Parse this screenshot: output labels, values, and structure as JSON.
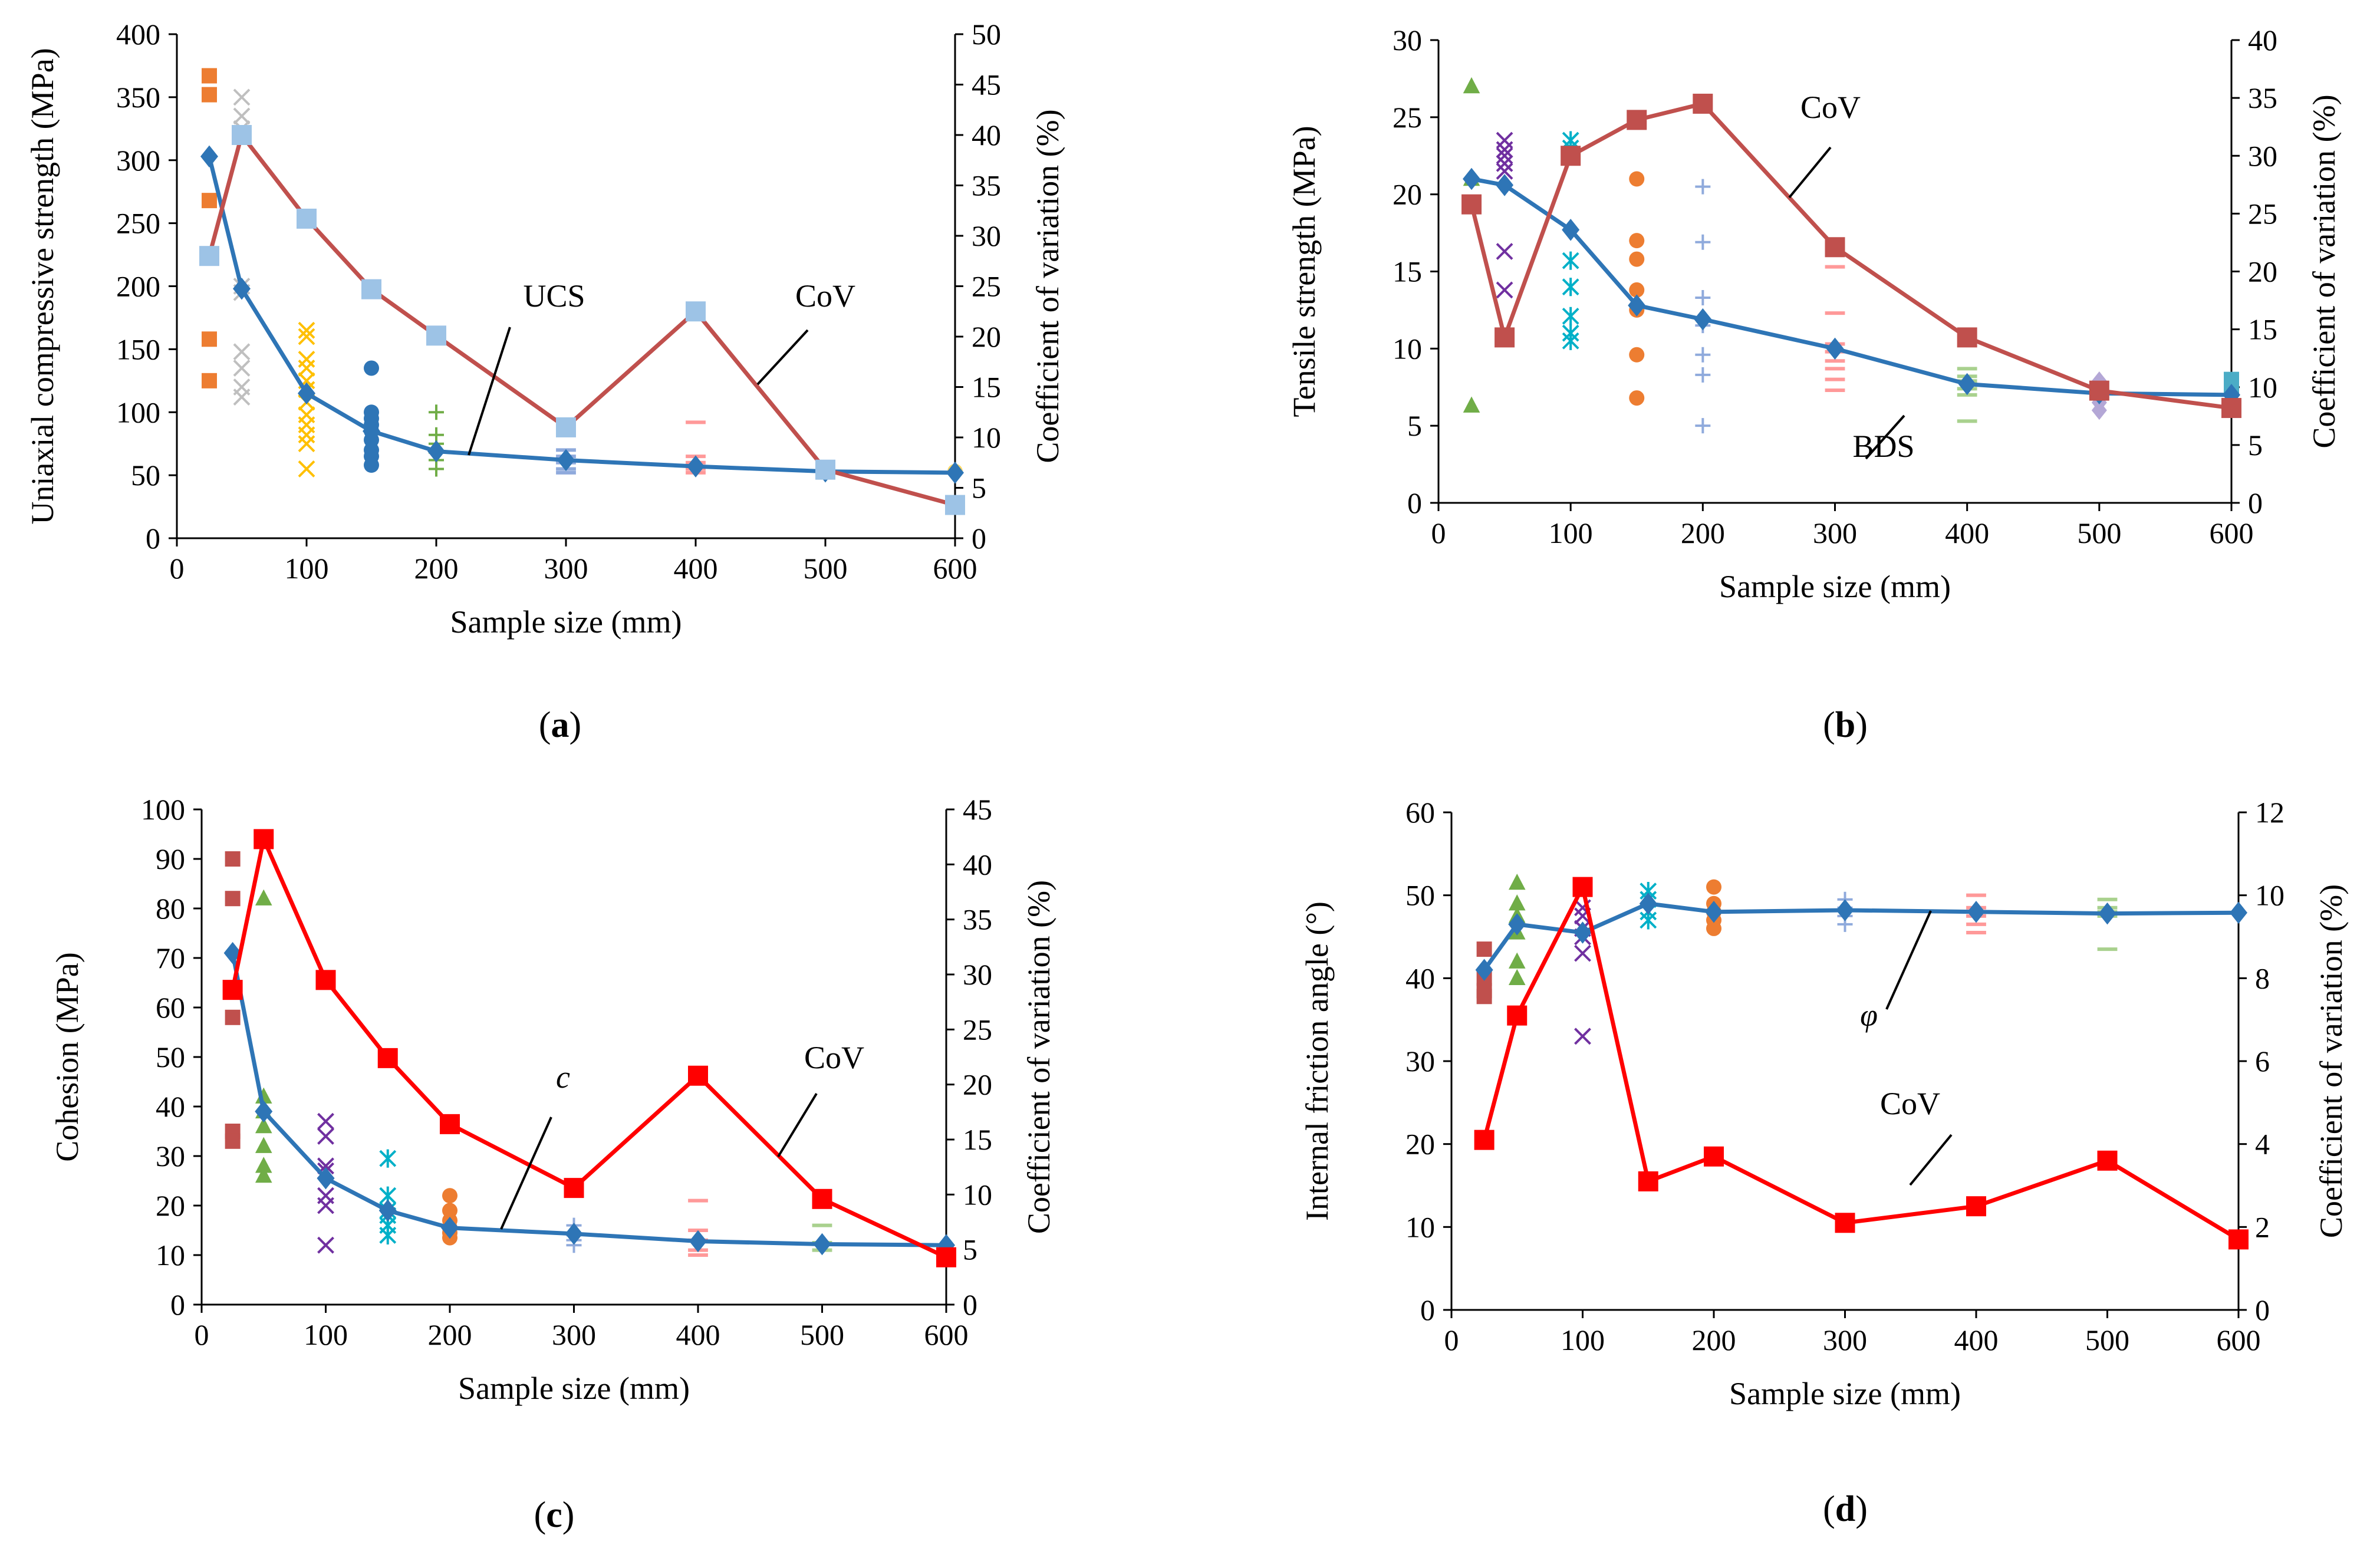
{
  "chart_data": [
    {
      "id": "a",
      "type": "line",
      "panel_label": "(a)",
      "panel_letter": "a",
      "xlabel": "Sample size (mm)",
      "ylabel": "Uniaxial compressive strength (MPa)",
      "y2label": "Coefficient of variation (%)",
      "xlim": [
        0,
        600
      ],
      "ylim": [
        0,
        400
      ],
      "y2lim": [
        0,
        50
      ],
      "xticks": [
        0,
        100,
        200,
        300,
        400,
        500,
        600
      ],
      "yticks": [
        0,
        50,
        100,
        150,
        200,
        250,
        300,
        350,
        400
      ],
      "y2ticks": [
        0,
        5,
        10,
        15,
        20,
        25,
        30,
        35,
        40,
        45,
        50
      ],
      "annotations": [
        "UCS",
        "CoV"
      ],
      "series": [
        {
          "name": "UCS",
          "axis": "left",
          "color": "#2e75b6",
          "marker": "diamond",
          "x": [
            25,
            50,
            100,
            150,
            200,
            300,
            400,
            500,
            600
          ],
          "values": [
            303,
            198,
            115,
            85,
            69,
            62,
            57,
            53,
            52
          ]
        },
        {
          "name": "CoV",
          "axis": "right",
          "color": "#c0504d",
          "marker_color": "#9dc3e6",
          "marker": "square",
          "x": [
            25,
            50,
            100,
            150,
            200,
            300,
            400,
            500,
            600
          ],
          "values": [
            28,
            40,
            31.7,
            24.7,
            20.1,
            11,
            22.5,
            6.8,
            3.3
          ]
        }
      ],
      "scatter": [
        {
          "x": 25,
          "color": "#ed7d31",
          "marker": "square",
          "values": [
            367,
            352,
            268,
            158,
            125
          ]
        },
        {
          "x": 50,
          "color": "#bfbfbf",
          "marker": "x",
          "values": [
            350,
            335,
            325,
            200,
            195,
            148,
            135,
            120,
            112
          ]
        },
        {
          "x": 100,
          "color": "#ffc000",
          "marker": "x",
          "values": [
            165,
            160,
            142,
            135,
            125,
            118,
            108,
            98,
            90,
            82,
            75,
            55
          ]
        },
        {
          "x": 150,
          "color": "#2e75b6",
          "marker": "circle",
          "values": [
            135,
            100,
            95,
            90,
            85,
            78,
            70,
            65,
            58
          ]
        },
        {
          "x": 200,
          "color": "#70ad47",
          "marker": "plus",
          "values": [
            100,
            82,
            75,
            68,
            62,
            55
          ]
        },
        {
          "x": 300,
          "color": "#8faadc",
          "marker": "dash",
          "values": [
            70,
            65,
            60,
            55,
            52
          ]
        },
        {
          "x": 400,
          "color": "#ff9999",
          "marker": "dash",
          "values": [
            92,
            65,
            60,
            55,
            52
          ]
        },
        {
          "x": 500,
          "color": "#a9d18e",
          "marker": "dash",
          "values": [
            57,
            55,
            52
          ]
        },
        {
          "x": 600,
          "color": "#ffd966",
          "marker": "circle",
          "values": [
            53
          ]
        }
      ]
    },
    {
      "id": "b",
      "type": "line",
      "panel_label": "(b)",
      "panel_letter": "b",
      "xlabel": "Sample size (mm)",
      "ylabel": "Tensile strength (MPa)",
      "y2label": "Coefficient of variation (%)",
      "xlim": [
        0,
        600
      ],
      "ylim": [
        0,
        30
      ],
      "y2lim": [
        0,
        40
      ],
      "xticks": [
        0,
        100,
        200,
        300,
        400,
        500,
        600
      ],
      "yticks": [
        0,
        5,
        10,
        15,
        20,
        25,
        30
      ],
      "y2ticks": [
        0,
        5,
        10,
        15,
        20,
        25,
        30,
        35,
        40
      ],
      "annotations": [
        "CoV",
        "BDS"
      ],
      "series": [
        {
          "name": "BDS",
          "axis": "left",
          "color": "#2e75b6",
          "marker": "diamond",
          "x": [
            25,
            50,
            100,
            150,
            200,
            300,
            400,
            500,
            600
          ],
          "values": [
            21,
            20.6,
            17.7,
            12.8,
            11.9,
            10,
            7.7,
            7.1,
            7
          ]
        },
        {
          "name": "CoV",
          "axis": "right",
          "color": "#c0504d",
          "marker": "square",
          "x": [
            25,
            50,
            100,
            150,
            200,
            300,
            400,
            500,
            600
          ],
          "values": [
            25.8,
            14.3,
            30,
            33.1,
            34.5,
            22.1,
            14.3,
            9.7,
            8.2
          ]
        }
      ],
      "scatter": [
        {
          "x": 25,
          "color": "#70ad47",
          "marker": "triangle",
          "values": [
            27,
            21,
            6.3
          ]
        },
        {
          "x": 50,
          "color": "#7030a0",
          "marker": "x",
          "values": [
            23.5,
            22.9,
            22.5,
            22,
            21.5,
            16.3,
            13.8
          ]
        },
        {
          "x": 100,
          "color": "#00b0c8",
          "marker": "asterisk",
          "values": [
            23.5,
            23,
            15.7,
            14,
            12.1,
            11,
            10.5
          ]
        },
        {
          "x": 150,
          "color": "#ed7d31",
          "marker": "circle",
          "values": [
            21,
            17,
            15.8,
            13.8,
            12.5,
            9.6,
            6.8
          ]
        },
        {
          "x": 200,
          "color": "#8faadc",
          "marker": "plus",
          "values": [
            20.5,
            16.9,
            13.3,
            11.5,
            9.6,
            8.3,
            5
          ]
        },
        {
          "x": 300,
          "color": "#ff9999",
          "marker": "dash",
          "values": [
            15.3,
            12.3,
            10.3,
            9.8,
            9.2,
            8.7,
            8,
            7.3
          ]
        },
        {
          "x": 400,
          "color": "#a9d18e",
          "marker": "dash",
          "values": [
            8.7,
            8.2,
            7.9,
            7.4,
            7,
            5.3
          ]
        },
        {
          "x": 500,
          "color": "#b4a7d6",
          "marker": "diamond",
          "values": [
            7.9,
            7.5,
            6.9,
            6.5,
            6
          ]
        },
        {
          "x": 600,
          "color": "#4bacc6",
          "marker": "square",
          "values": [
            8,
            7.6
          ]
        }
      ]
    },
    {
      "id": "c",
      "type": "line",
      "panel_label": "(c)",
      "panel_letter": "c",
      "xlabel": "Sample size (mm)",
      "ylabel": "Cohesion (MPa)",
      "y2label": "Coefficient of variation (%)",
      "xlim": [
        0,
        600
      ],
      "ylim": [
        0,
        100
      ],
      "y2lim": [
        0,
        45
      ],
      "xticks": [
        0,
        100,
        200,
        300,
        400,
        500,
        600
      ],
      "yticks": [
        0,
        10,
        20,
        30,
        40,
        50,
        60,
        70,
        80,
        90,
        100
      ],
      "y2ticks": [
        0,
        5,
        10,
        15,
        20,
        25,
        30,
        35,
        40,
        45
      ],
      "annotations": [
        "c",
        "CoV"
      ],
      "series": [
        {
          "name": "c",
          "axis": "left",
          "color": "#2e75b6",
          "marker": "diamond",
          "x": [
            25,
            50,
            100,
            150,
            200,
            300,
            400,
            500,
            600
          ],
          "values": [
            71,
            39,
            25.5,
            19,
            15.5,
            14.3,
            12.8,
            12.2,
            12
          ]
        },
        {
          "name": "CoV",
          "axis": "right",
          "color": "#ff0000",
          "marker": "square",
          "x": [
            25,
            50,
            100,
            150,
            200,
            300,
            400,
            500,
            600
          ],
          "values": [
            28.6,
            42.3,
            29.5,
            22.4,
            16.4,
            10.6,
            20.8,
            9.6,
            4.3
          ]
        }
      ],
      "scatter": [
        {
          "x": 25,
          "color": "#c0504d",
          "marker": "square",
          "values": [
            90,
            82,
            58,
            35,
            33
          ]
        },
        {
          "x": 50,
          "color": "#70ad47",
          "marker": "triangle",
          "values": [
            82,
            42,
            39,
            36,
            32,
            28,
            26
          ]
        },
        {
          "x": 100,
          "color": "#7030a0",
          "marker": "x",
          "values": [
            37,
            34,
            28,
            27,
            22,
            20,
            12
          ]
        },
        {
          "x": 150,
          "color": "#00b0c8",
          "marker": "asterisk",
          "values": [
            29.5,
            22,
            19,
            18,
            16,
            14
          ]
        },
        {
          "x": 200,
          "color": "#ed7d31",
          "marker": "circle",
          "values": [
            22,
            19,
            17,
            15.5,
            14.5,
            13.5
          ]
        },
        {
          "x": 300,
          "color": "#8faadc",
          "marker": "plus",
          "values": [
            16,
            14,
            13,
            12
          ]
        },
        {
          "x": 400,
          "color": "#ff9999",
          "marker": "dash",
          "values": [
            21,
            15,
            13,
            11,
            10
          ]
        },
        {
          "x": 500,
          "color": "#a9d18e",
          "marker": "dash",
          "values": [
            16,
            12.5,
            11
          ]
        },
        {
          "x": 600,
          "color": "#b4a7d6",
          "marker": "diamond",
          "values": [
            12
          ]
        }
      ]
    },
    {
      "id": "d",
      "type": "line",
      "panel_label": "(d)",
      "panel_letter": "d",
      "xlabel": "Sample size (mm)",
      "ylabel": "Internal friction angle (°)",
      "y2label": "Coefficient of variation (%)",
      "xlim": [
        0,
        600
      ],
      "ylim": [
        0,
        60
      ],
      "y2lim": [
        0,
        12
      ],
      "xticks": [
        0,
        100,
        200,
        300,
        400,
        500,
        600
      ],
      "yticks": [
        0,
        10,
        20,
        30,
        40,
        50,
        60
      ],
      "y2ticks": [
        0,
        2,
        4,
        6,
        8,
        10,
        12
      ],
      "annotations": [
        "φ",
        "CoV"
      ],
      "series": [
        {
          "name": "φ",
          "axis": "left",
          "color": "#2e75b6",
          "marker": "diamond",
          "x": [
            25,
            50,
            100,
            150,
            200,
            300,
            400,
            500,
            600
          ],
          "values": [
            41,
            46.5,
            45.5,
            49,
            48,
            48.2,
            48,
            47.8,
            47.9
          ]
        },
        {
          "name": "CoV",
          "axis": "right",
          "color": "#ff0000",
          "marker": "square",
          "x": [
            25,
            50,
            100,
            150,
            200,
            300,
            400,
            500,
            600
          ],
          "values": [
            4.1,
            7.1,
            10.2,
            3.1,
            3.7,
            2.1,
            2.5,
            3.6,
            1.7
          ]
        }
      ],
      "scatter": [
        {
          "x": 25,
          "color": "#c0504d",
          "marker": "square",
          "values": [
            43.5,
            40,
            38.5,
            37.8
          ]
        },
        {
          "x": 50,
          "color": "#70ad47",
          "marker": "triangle",
          "values": [
            51.5,
            49,
            47.5,
            45.5,
            42,
            40
          ]
        },
        {
          "x": 100,
          "color": "#7030a0",
          "marker": "x",
          "values": [
            48.5,
            47.5,
            46,
            45,
            43,
            33
          ]
        },
        {
          "x": 150,
          "color": "#00b0c8",
          "marker": "asterisk",
          "values": [
            50.5,
            49.5,
            48,
            47
          ]
        },
        {
          "x": 200,
          "color": "#ed7d31",
          "marker": "circle",
          "values": [
            51,
            49,
            48,
            47,
            46
          ]
        },
        {
          "x": 300,
          "color": "#8faadc",
          "marker": "plus",
          "values": [
            49.5,
            48.5,
            47.5,
            46.5
          ]
        },
        {
          "x": 400,
          "color": "#ff9999",
          "marker": "dash",
          "values": [
            50,
            48.5,
            47.5,
            46.5,
            45.5
          ]
        },
        {
          "x": 500,
          "color": "#a9d18e",
          "marker": "dash",
          "values": [
            49.5,
            48.5,
            48,
            47.5,
            43.5
          ]
        },
        {
          "x": 600,
          "color": "#b4a7d6",
          "marker": "diamond",
          "values": [
            48
          ]
        }
      ]
    }
  ]
}
